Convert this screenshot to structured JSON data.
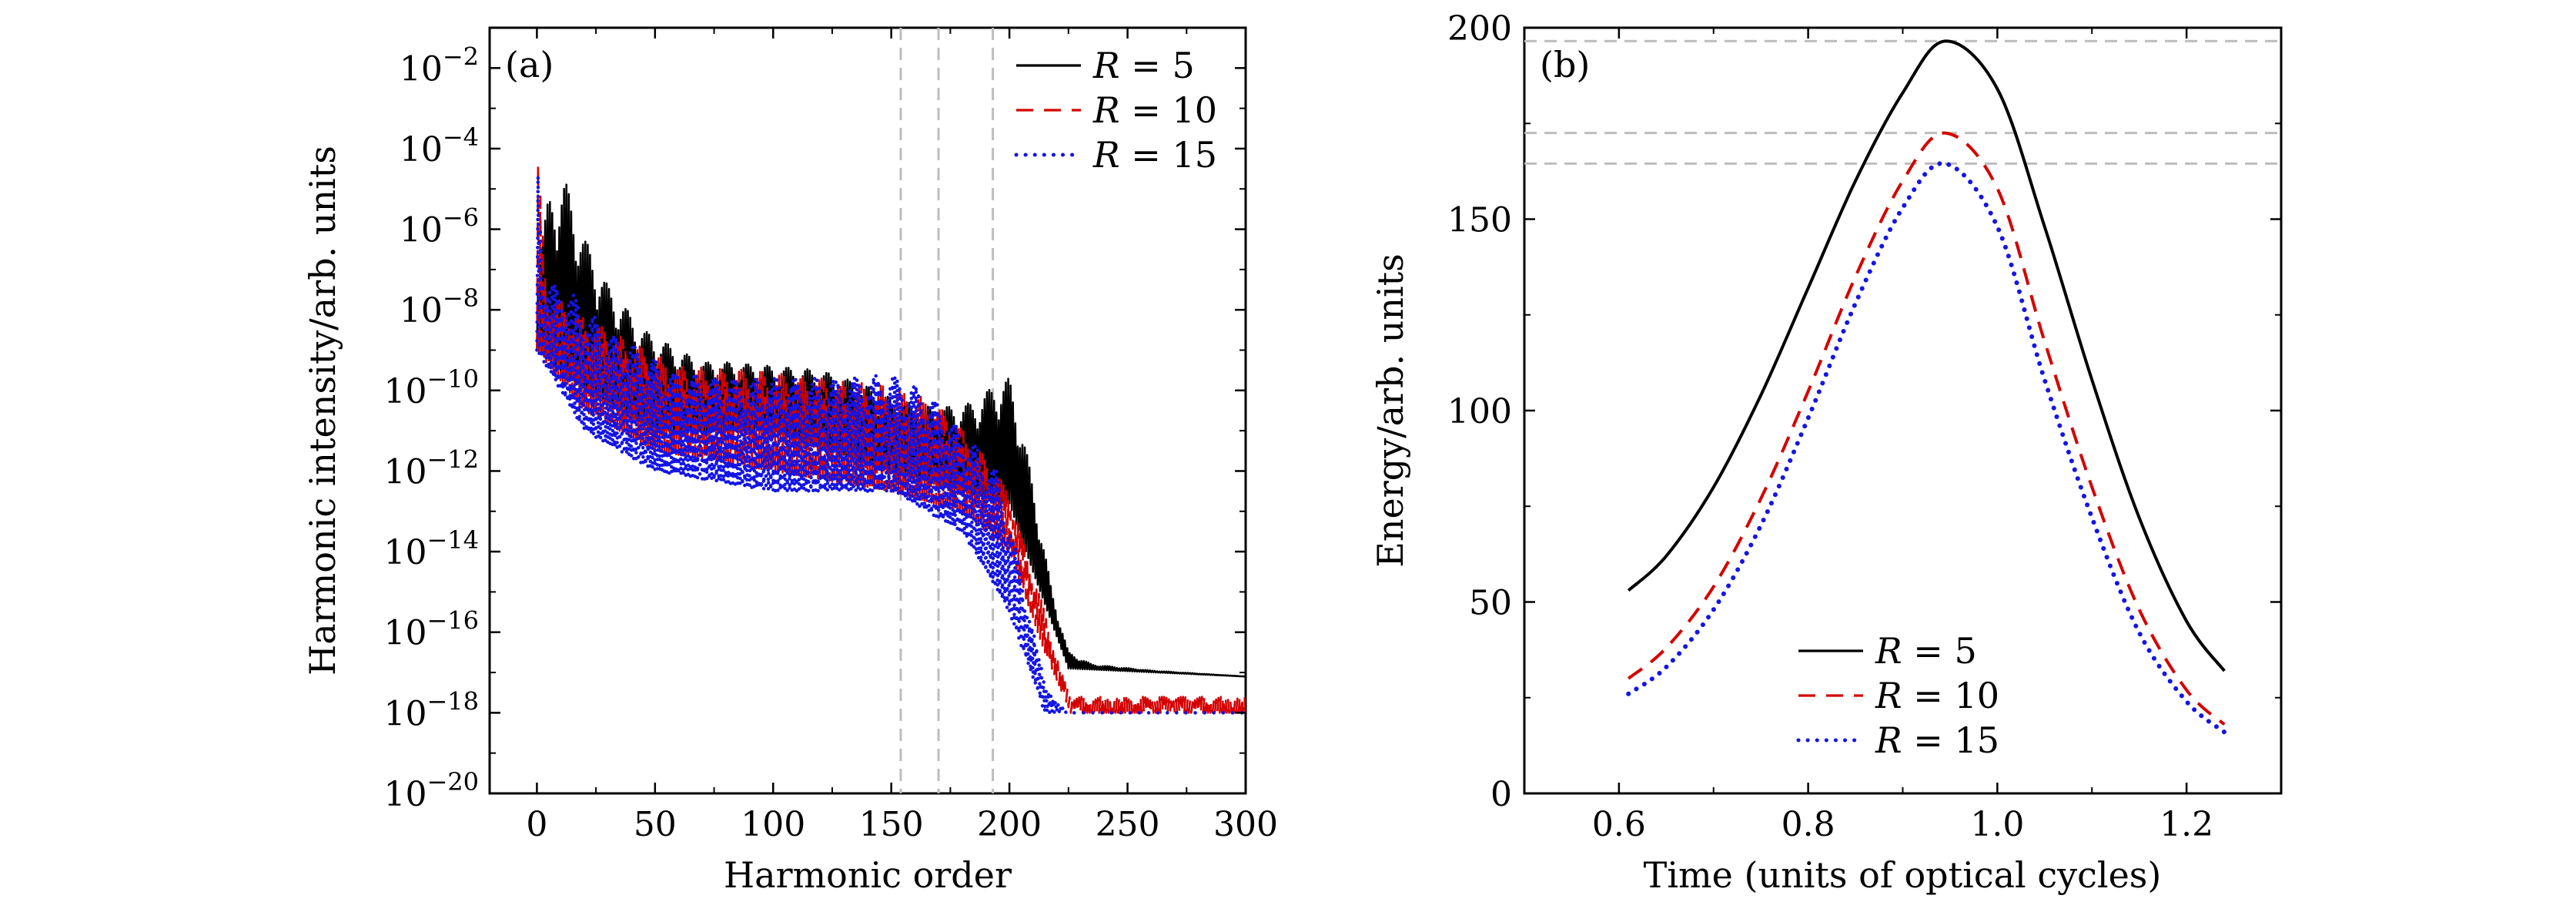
{
  "chart_data": [
    {
      "panel_label": "(a)",
      "type": "line",
      "xlabel": "Harmonic order",
      "ylabel": "Harmonic intensity/arb. units",
      "xlim": [
        -20,
        300
      ],
      "ylim_exponent": [
        -20,
        -1
      ],
      "yscale": "log",
      "x_ticks": [
        0,
        50,
        100,
        150,
        200,
        250,
        300
      ],
      "y_tick_exponents": [
        -20,
        -18,
        -16,
        -14,
        -12,
        -10,
        -8,
        -6,
        -4,
        -2
      ],
      "y_tick_base": "10",
      "reference_lines_x": [
        154,
        170,
        193
      ],
      "legend_position": "top-right",
      "series": [
        {
          "name": "R = 5",
          "legend_var": "R",
          "legend_eq": " = ",
          "legend_val": "5",
          "color": "#000000",
          "style": "solid",
          "envelope": [
            [
              0,
              -7
            ],
            [
              5,
              -5.2
            ],
            [
              12,
              -4.8
            ],
            [
              20,
              -6.2
            ],
            [
              30,
              -7.4
            ],
            [
              45,
              -8.5
            ],
            [
              60,
              -9.0
            ],
            [
              70,
              -9.3
            ],
            [
              80,
              -9.3
            ],
            [
              100,
              -9.4
            ],
            [
              120,
              -9.5
            ],
            [
              140,
              -9.9
            ],
            [
              150,
              -10.2
            ],
            [
              165,
              -10.4
            ],
            [
              175,
              -10.4
            ],
            [
              185,
              -10.3
            ],
            [
              195,
              -9.8
            ],
            [
              200,
              -9.7
            ],
            [
              205,
              -10.8
            ],
            [
              212,
              -13.0
            ],
            [
              218,
              -15.0
            ],
            [
              225,
              -16.5
            ],
            [
              235,
              -16.8
            ],
            [
              260,
              -16.95
            ],
            [
              300,
              -17.1
            ]
          ],
          "floor": [
            [
              0,
              -9
            ],
            [
              20,
              -10
            ],
            [
              50,
              -11
            ],
            [
              100,
              -11
            ],
            [
              150,
              -12
            ],
            [
              180,
              -12.5
            ],
            [
              200,
              -12.8
            ],
            [
              210,
              -14.5
            ],
            [
              225,
              -16.9
            ],
            [
              300,
              -17.1
            ]
          ]
        },
        {
          "name": "R = 10",
          "legend_var": "R",
          "legend_eq": " = ",
          "legend_val": "10",
          "color": "#d40000",
          "style": "dashed",
          "envelope": [
            [
              0,
              -3.8
            ],
            [
              4,
              -7.5
            ],
            [
              15,
              -8.0
            ],
            [
              30,
              -8.5
            ],
            [
              60,
              -9.4
            ],
            [
              90,
              -9.5
            ],
            [
              120,
              -9.7
            ],
            [
              150,
              -9.9
            ],
            [
              170,
              -10.3
            ],
            [
              185,
              -11.3
            ],
            [
              200,
              -12.5
            ],
            [
              215,
              -15.5
            ],
            [
              222,
              -17.0
            ],
            [
              226,
              -17.6
            ]
          ],
          "floor": [
            [
              0,
              -9
            ],
            [
              20,
              -10.5
            ],
            [
              50,
              -11.5
            ],
            [
              100,
              -12
            ],
            [
              150,
              -12.5
            ],
            [
              180,
              -13
            ],
            [
              200,
              -14
            ],
            [
              215,
              -16.5
            ],
            [
              226,
              -18
            ]
          ]
        },
        {
          "name": "R = 15",
          "legend_var": "R",
          "legend_eq": " = ",
          "legend_val": "15",
          "color": "#1414e6",
          "style": "dotted",
          "envelope": [
            [
              0,
              -3.8
            ],
            [
              3,
              -7.2
            ],
            [
              15,
              -7.6
            ],
            [
              30,
              -8.5
            ],
            [
              60,
              -9.6
            ],
            [
              90,
              -9.7
            ],
            [
              120,
              -9.7
            ],
            [
              150,
              -9.6
            ],
            [
              165,
              -10.0
            ],
            [
              180,
              -11.0
            ],
            [
              195,
              -12.0
            ],
            [
              205,
              -14.5
            ],
            [
              212,
              -16.5
            ],
            [
              218,
              -17.6
            ],
            [
              225,
              -18.0
            ],
            [
              300,
              -18.0
            ]
          ],
          "floor": [
            [
              0,
              -9
            ],
            [
              20,
              -11
            ],
            [
              50,
              -12
            ],
            [
              100,
              -12.5
            ],
            [
              150,
              -12.5
            ],
            [
              180,
              -13.5
            ],
            [
              200,
              -15.5
            ],
            [
              215,
              -18
            ],
            [
              300,
              -18
            ]
          ]
        }
      ]
    },
    {
      "panel_label": "(b)",
      "type": "line",
      "xlabel": "Time (units of optical cycles)",
      "ylabel": "Energy/arb. units",
      "xlim": [
        0.5,
        1.3
      ],
      "ylim": [
        0,
        200
      ],
      "x_ticks": [
        0.6,
        0.8,
        1.0,
        1.2
      ],
      "x_tick_labels": [
        "0.6",
        "0.8",
        "1.0",
        "1.2"
      ],
      "y_ticks": [
        0,
        50,
        100,
        150,
        200
      ],
      "reference_lines_y": [
        196.5,
        172.5,
        164.5
      ],
      "legend_position": "bottom-center",
      "series": [
        {
          "name": "R = 5",
          "legend_var": "R",
          "legend_eq": " = ",
          "legend_val": "5",
          "color": "#000000",
          "style": "solid",
          "x": [
            0.61,
            0.65,
            0.7,
            0.75,
            0.8,
            0.85,
            0.9,
            0.945,
            1.0,
            1.05,
            1.1,
            1.15,
            1.2,
            1.24
          ],
          "y": [
            53,
            62,
            80,
            104,
            132,
            160,
            183,
            196.5,
            184,
            148,
            108,
            72,
            45,
            32
          ]
        },
        {
          "name": "R = 10",
          "legend_var": "R",
          "legend_eq": " = ",
          "legend_val": "10",
          "color": "#d40000",
          "style": "dashed",
          "x": [
            0.61,
            0.65,
            0.7,
            0.75,
            0.8,
            0.85,
            0.9,
            0.945,
            1.0,
            1.05,
            1.1,
            1.15,
            1.2,
            1.24
          ],
          "y": [
            30,
            38,
            54,
            77,
            105,
            135,
            160,
            172.5,
            158,
            118,
            80,
            48,
            27,
            18
          ]
        },
        {
          "name": "R = 15",
          "legend_var": "R",
          "legend_eq": " = ",
          "legend_val": "15",
          "color": "#1414e6",
          "style": "dotted",
          "x": [
            0.61,
            0.65,
            0.7,
            0.75,
            0.8,
            0.85,
            0.9,
            0.945,
            1.0,
            1.05,
            1.1,
            1.15,
            1.2,
            1.24
          ],
          "y": [
            26,
            33,
            48,
            70,
            98,
            128,
            153,
            164.5,
            148,
            108,
            72,
            42,
            24,
            16
          ]
        }
      ]
    }
  ]
}
